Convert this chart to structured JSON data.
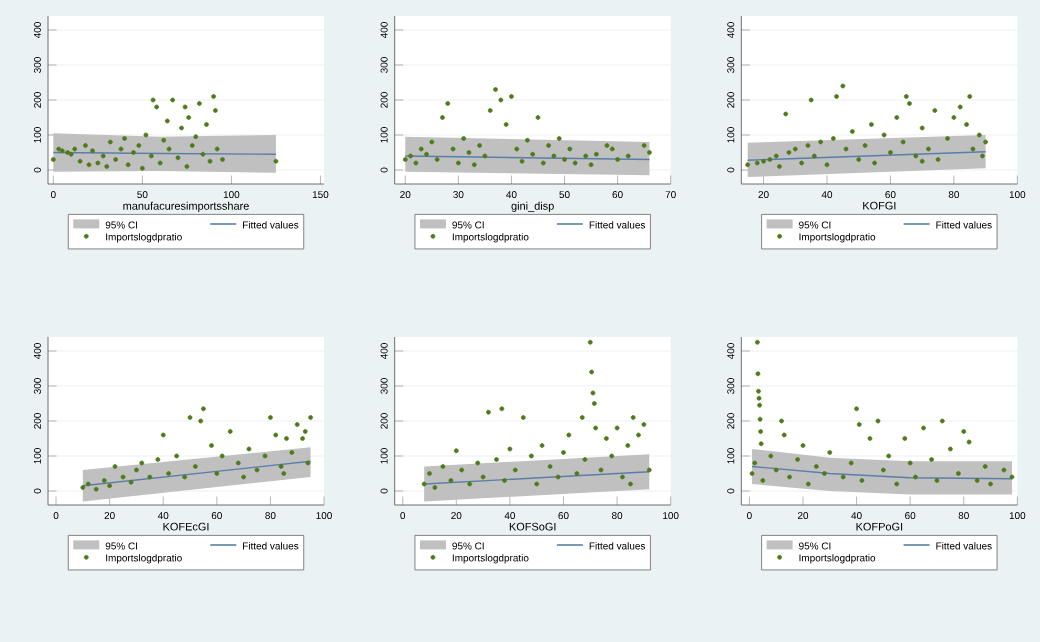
{
  "chart_data": [
    {
      "type": "scatter",
      "xlabel": "manufacuresimportsshare",
      "xlim": [
        -3,
        152
      ],
      "xticks": [
        0,
        50,
        100,
        150
      ],
      "ylim": [
        -40,
        440
      ],
      "yticks": [
        0,
        100,
        200,
        300,
        400
      ],
      "grid": "y",
      "legend": "bottom",
      "annotations": [
        "95% CI"
      ],
      "series": [
        {
          "name": "Fitted values",
          "type": "line",
          "color": "#5a7ea8",
          "x": [
            0,
            60,
            125
          ],
          "values": [
            50,
            47,
            45
          ],
          "lower": [
            -5,
            -3,
            -8
          ],
          "upper": [
            105,
            95,
            100
          ]
        },
        {
          "name": "Importslogdpratio",
          "marker": "circle",
          "color": "#4f7a1c",
          "x": [
            0,
            3,
            5,
            8,
            10,
            12,
            15,
            18,
            20,
            22,
            25,
            28,
            30,
            32,
            35,
            38,
            40,
            42,
            45,
            48,
            50,
            52,
            55,
            58,
            60,
            62,
            65,
            67,
            70,
            72,
            75,
            76,
            78,
            80,
            82,
            84,
            86,
            88,
            90,
            91,
            92,
            95,
            56,
            64,
            74,
            125
          ],
          "values": [
            30,
            60,
            55,
            50,
            45,
            60,
            25,
            70,
            15,
            55,
            20,
            40,
            10,
            80,
            30,
            60,
            90,
            15,
            50,
            70,
            5,
            100,
            40,
            180,
            20,
            85,
            60,
            200,
            35,
            120,
            10,
            150,
            70,
            95,
            190,
            45,
            130,
            25,
            210,
            170,
            60,
            30,
            200,
            140,
            180,
            25
          ]
        }
      ]
    },
    {
      "type": "scatter",
      "xlabel": "gini_disp",
      "xlim": [
        18,
        70
      ],
      "xticks": [
        20,
        30,
        40,
        50,
        60,
        70
      ],
      "ylim": [
        -40,
        440
      ],
      "yticks": [
        0,
        100,
        200,
        300,
        400
      ],
      "grid": "y",
      "legend": "bottom",
      "annotations": [
        "95% CI"
      ],
      "series": [
        {
          "name": "Fitted values",
          "type": "line",
          "color": "#5a7ea8",
          "x": [
            20,
            66
          ],
          "values": [
            40,
            30
          ],
          "lower": [
            -5,
            -15
          ],
          "upper": [
            95,
            80
          ]
        },
        {
          "name": "Importslogdpratio",
          "marker": "circle",
          "color": "#4f7a1c",
          "x": [
            20,
            21,
            22,
            23,
            24,
            25,
            26,
            27,
            28,
            29,
            30,
            31,
            32,
            33,
            34,
            35,
            36,
            37,
            38,
            39,
            40,
            41,
            42,
            43,
            44,
            45,
            46,
            47,
            48,
            49,
            50,
            51,
            52,
            54,
            56,
            58,
            60,
            62,
            65,
            66,
            55,
            59
          ],
          "values": [
            30,
            40,
            20,
            60,
            45,
            80,
            30,
            150,
            190,
            60,
            20,
            90,
            50,
            15,
            70,
            40,
            170,
            230,
            200,
            130,
            210,
            60,
            25,
            85,
            45,
            150,
            20,
            70,
            40,
            90,
            30,
            60,
            20,
            40,
            45,
            70,
            30,
            40,
            70,
            50,
            15,
            60
          ]
        }
      ]
    },
    {
      "type": "scatter",
      "xlabel": "KOFGI",
      "xlim": [
        13,
        100
      ],
      "xticks": [
        20,
        40,
        60,
        80,
        100
      ],
      "ylim": [
        -40,
        440
      ],
      "yticks": [
        0,
        100,
        200,
        300,
        400
      ],
      "grid": "y",
      "legend": "bottom",
      "annotations": [
        "95% CI"
      ],
      "series": [
        {
          "name": "Fitted values",
          "type": "line",
          "color": "#5a7ea8",
          "x": [
            15,
            90
          ],
          "values": [
            28,
            52
          ],
          "lower": [
            -20,
            5
          ],
          "upper": [
            78,
            100
          ]
        },
        {
          "name": "Importslogdpratio",
          "marker": "circle",
          "color": "#4f7a1c",
          "x": [
            15,
            18,
            20,
            22,
            24,
            25,
            27,
            28,
            30,
            32,
            34,
            35,
            36,
            38,
            40,
            42,
            43,
            45,
            46,
            48,
            50,
            52,
            54,
            55,
            58,
            60,
            62,
            64,
            65,
            66,
            68,
            70,
            72,
            74,
            75,
            78,
            80,
            82,
            84,
            85,
            86,
            88,
            90,
            89,
            70
          ],
          "values": [
            15,
            20,
            25,
            30,
            40,
            10,
            160,
            50,
            60,
            20,
            70,
            200,
            40,
            80,
            15,
            90,
            210,
            240,
            60,
            110,
            30,
            70,
            130,
            20,
            100,
            50,
            150,
            80,
            210,
            190,
            40,
            120,
            60,
            170,
            30,
            90,
            150,
            180,
            130,
            210,
            60,
            100,
            80,
            40,
            25
          ]
        }
      ]
    },
    {
      "type": "scatter",
      "xlabel": "KOFEcGI",
      "xlim": [
        -3,
        100
      ],
      "xticks": [
        0,
        20,
        40,
        60,
        80,
        100
      ],
      "ylim": [
        -40,
        440
      ],
      "yticks": [
        0,
        100,
        200,
        300,
        400
      ],
      "grid": "y",
      "legend": "bottom",
      "annotations": [
        "95% CI"
      ],
      "series": [
        {
          "name": "Fitted values",
          "type": "line",
          "color": "#5a7ea8",
          "x": [
            10,
            95
          ],
          "values": [
            15,
            85
          ],
          "lower": [
            -30,
            40
          ],
          "upper": [
            60,
            125
          ]
        },
        {
          "name": "Importslogdpratio",
          "marker": "circle",
          "color": "#4f7a1c",
          "x": [
            10,
            12,
            15,
            18,
            20,
            22,
            25,
            28,
            30,
            32,
            35,
            38,
            40,
            42,
            45,
            48,
            50,
            52,
            54,
            55,
            58,
            60,
            62,
            65,
            68,
            70,
            72,
            75,
            78,
            80,
            82,
            84,
            86,
            88,
            90,
            92,
            93,
            95,
            94,
            85
          ],
          "values": [
            10,
            20,
            5,
            30,
            15,
            70,
            40,
            25,
            60,
            80,
            40,
            90,
            160,
            50,
            100,
            40,
            210,
            70,
            200,
            235,
            130,
            50,
            100,
            170,
            80,
            40,
            120,
            60,
            100,
            210,
            160,
            70,
            150,
            110,
            190,
            150,
            170,
            210,
            80,
            50
          ]
        }
      ]
    },
    {
      "type": "scatter",
      "xlabel": "KOFSoGI",
      "xlim": [
        -3,
        100
      ],
      "xticks": [
        0,
        20,
        40,
        60,
        80,
        100
      ],
      "ylim": [
        -40,
        440
      ],
      "yticks": [
        0,
        100,
        200,
        300,
        400
      ],
      "grid": "y",
      "legend": "bottom",
      "annotations": [
        "95% CI"
      ],
      "series": [
        {
          "name": "Fitted values",
          "type": "line",
          "color": "#5a7ea8",
          "x": [
            8,
            92
          ],
          "values": [
            20,
            55
          ],
          "lower": [
            -30,
            5
          ],
          "upper": [
            70,
            105
          ]
        },
        {
          "name": "Importslogdpratio",
          "marker": "circle",
          "color": "#4f7a1c",
          "x": [
            8,
            10,
            12,
            15,
            18,
            20,
            22,
            25,
            28,
            30,
            32,
            35,
            37,
            38,
            40,
            42,
            45,
            48,
            50,
            52,
            55,
            58,
            60,
            62,
            65,
            67,
            68,
            70,
            70.5,
            71,
            71.5,
            72,
            74,
            76,
            78,
            80,
            82,
            84,
            86,
            88,
            90,
            92,
            85
          ],
          "values": [
            20,
            50,
            10,
            70,
            30,
            115,
            60,
            20,
            80,
            40,
            225,
            90,
            235,
            30,
            120,
            60,
            210,
            100,
            20,
            130,
            70,
            40,
            110,
            160,
            50,
            210,
            90,
            425,
            340,
            280,
            250,
            180,
            60,
            150,
            100,
            180,
            40,
            130,
            210,
            160,
            190,
            60,
            20
          ]
        }
      ]
    },
    {
      "type": "scatter",
      "xlabel": "KOFPoGI",
      "xlim": [
        -3,
        100
      ],
      "xticks": [
        0,
        20,
        40,
        60,
        80,
        100
      ],
      "ylim": [
        -40,
        440
      ],
      "yticks": [
        0,
        100,
        200,
        300,
        400
      ],
      "grid": "y",
      "legend": "bottom",
      "annotations": [
        "95% CI"
      ],
      "series": [
        {
          "name": "Fitted values",
          "type": "line",
          "color": "#5a7ea8",
          "x": [
            1,
            30,
            60,
            98
          ],
          "values": [
            70,
            50,
            38,
            35
          ],
          "lower": [
            20,
            0,
            -10,
            -10
          ],
          "upper": [
            120,
            95,
            85,
            85
          ]
        },
        {
          "name": "Importslogdpratio",
          "marker": "circle",
          "color": "#4f7a1c",
          "x": [
            1,
            2,
            3,
            3.2,
            3.4,
            3.6,
            3.8,
            4,
            4.2,
            4.4,
            5,
            8,
            10,
            12,
            13,
            15,
            18,
            20,
            22,
            25,
            28,
            30,
            35,
            38,
            40,
            41,
            42,
            45,
            48,
            50,
            52,
            55,
            58,
            60,
            62,
            65,
            68,
            70,
            72,
            75,
            78,
            80,
            82,
            85,
            88,
            90,
            95,
            98
          ],
          "values": [
            50,
            80,
            425,
            335,
            285,
            265,
            245,
            205,
            170,
            135,
            30,
            100,
            60,
            200,
            160,
            40,
            90,
            130,
            20,
            70,
            50,
            110,
            40,
            80,
            235,
            190,
            30,
            150,
            200,
            60,
            100,
            20,
            150,
            80,
            40,
            180,
            90,
            30,
            200,
            120,
            50,
            170,
            140,
            30,
            70,
            20,
            60,
            40
          ]
        }
      ]
    }
  ]
}
